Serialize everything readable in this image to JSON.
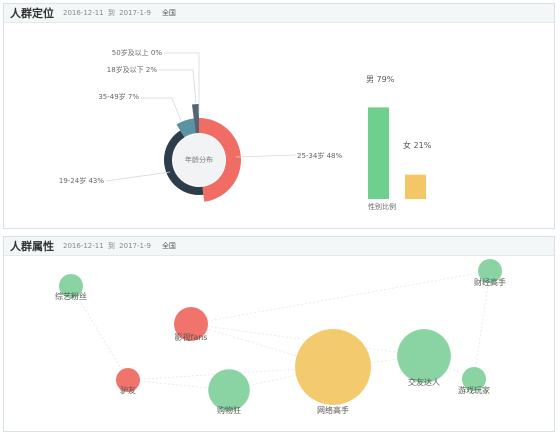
{
  "panels": [
    {
      "title": "人群定位",
      "date_from": "2016-12-11",
      "date_sep": "到",
      "date_to": "2017-1-9",
      "region": "全国"
    },
    {
      "title": "人群属性",
      "date_from": "2016-12-11",
      "date_sep": "到",
      "date_to": "2017-1-9",
      "region": "全国"
    }
  ],
  "chart_data": [
    {
      "type": "pie",
      "title": "年龄分布",
      "slices": [
        {
          "label": "25-34岁 48%",
          "value": 48,
          "color": "#ef6d64"
        },
        {
          "label": "19-24岁 43%",
          "value": 43,
          "color": "#2d3d4a"
        },
        {
          "label": "35-49岁 7%",
          "value": 7,
          "color": "#5b93a2"
        },
        {
          "label": "18岁及以下 2%",
          "value": 2,
          "color": "#566573"
        },
        {
          "label": "50岁及以上 0%",
          "value": 0,
          "color": "#a8b3bd"
        }
      ]
    },
    {
      "type": "bar",
      "xlabel": "性别比例",
      "categories": [
        "男",
        "女"
      ],
      "values": [
        79,
        21
      ],
      "data_labels": [
        "男 79%",
        "女 21%"
      ],
      "colors": [
        "#6ecf8e",
        "#f3c766"
      ]
    },
    {
      "type": "scatter",
      "points": [
        {
          "label": "综艺粉丝",
          "size": 1,
          "color": "#84d19d"
        },
        {
          "label": "财经高手",
          "size": 1,
          "color": "#84d19d"
        },
        {
          "label": "影视fans",
          "size": 2,
          "color": "#ef6d64"
        },
        {
          "label": "驴友",
          "size": 1,
          "color": "#ef6d64"
        },
        {
          "label": "购物狂",
          "size": 3,
          "color": "#84d19d"
        },
        {
          "label": "网络高手",
          "size": 10,
          "color": "#f3c766"
        },
        {
          "label": "交友达人",
          "size": 5,
          "color": "#84d19d"
        },
        {
          "label": "游戏玩家",
          "size": 1,
          "color": "#84d19d"
        }
      ]
    }
  ]
}
